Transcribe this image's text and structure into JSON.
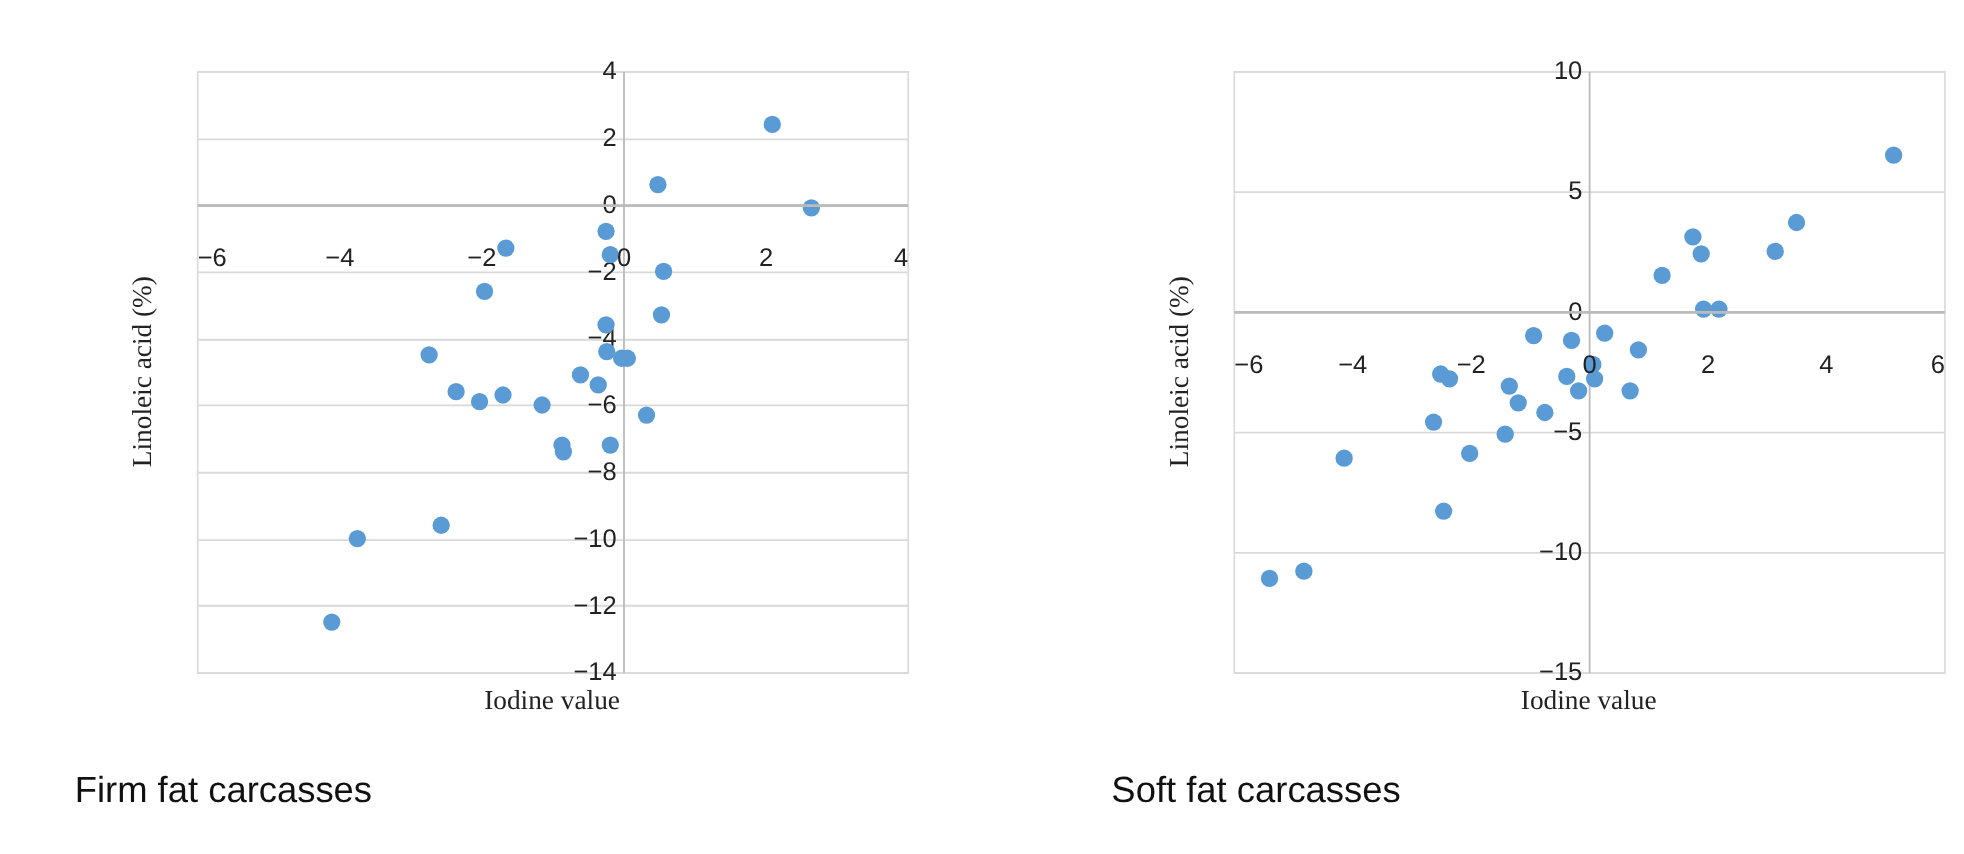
{
  "chart_data": [
    {
      "type": "scatter",
      "title": "Firm fat carcasses",
      "xlabel": "Iodine value",
      "ylabel": "Linoleic acid (%)",
      "xlim": [
        -6,
        4
      ],
      "xticks": [
        -6,
        -4,
        -2,
        0,
        2,
        4
      ],
      "ylim": [
        -14,
        4
      ],
      "yticks": [
        -14,
        -12,
        -10,
        -8,
        -6,
        -4,
        -2,
        0,
        2,
        4
      ],
      "grid": "y",
      "marker": "circle",
      "x": [
        2.1,
        0.49,
        2.65,
        -0.24,
        -0.18,
        -1.65,
        0.57,
        -1.95,
        0.54,
        -0.24,
        -2.73,
        -0.23,
        -0.02,
        0.06,
        -0.6,
        -0.35,
        -2.35,
        -2.02,
        -1.69,
        -1.14,
        0.33,
        -0.86,
        -0.84,
        -0.18,
        -2.56,
        -3.74,
        -4.1
      ],
      "series": [
        {
          "color": "#5b9bd5",
          "values": [
            2.4,
            0.6,
            -0.1,
            -0.8,
            -1.5,
            -1.3,
            -2.0,
            -2.6,
            -3.3,
            -3.6,
            -4.5,
            -4.4,
            -4.6,
            -4.6,
            -5.1,
            -5.4,
            -5.6,
            -5.9,
            -5.7,
            -6.0,
            -6.3,
            -7.2,
            -7.4,
            -7.2,
            -9.6,
            -10.0,
            -12.5
          ]
        }
      ]
    },
    {
      "type": "scatter",
      "title": "Soft fat carcasses",
      "xlabel": "Iodine value",
      "ylabel": "Linoleic acid (%)",
      "xlim": [
        -6,
        6
      ],
      "xticks": [
        -6,
        -4,
        -2,
        0,
        2,
        4,
        6
      ],
      "ylim": [
        -15,
        10
      ],
      "yticks": [
        -15,
        -10,
        -5,
        0,
        5,
        10
      ],
      "grid": "y",
      "marker": "circle",
      "x": [
        5.15,
        3.51,
        1.76,
        1.9,
        3.15,
        1.24,
        1.94,
        2.2,
        -0.93,
        -0.29,
        0.27,
        0.84,
        -2.5,
        -2.35,
        0.07,
        0.1,
        -0.37,
        -1.34,
        -0.17,
        0.7,
        -1.19,
        -0.74,
        -2.62,
        -1.41,
        -2.01,
        -4.13,
        -2.45,
        -4.81,
        -5.39
      ],
      "series": [
        {
          "color": "#5b9bd5",
          "values": [
            6.5,
            3.7,
            3.1,
            2.4,
            2.5,
            1.5,
            0.1,
            0.1,
            -1.0,
            -1.2,
            -0.9,
            -1.6,
            -2.6,
            -2.8,
            -2.2,
            -2.8,
            -2.7,
            -3.1,
            -3.3,
            -3.3,
            -3.8,
            -4.2,
            -4.6,
            -5.1,
            -5.9,
            -6.1,
            -8.3,
            -10.8,
            -11.1
          ]
        }
      ]
    }
  ]
}
